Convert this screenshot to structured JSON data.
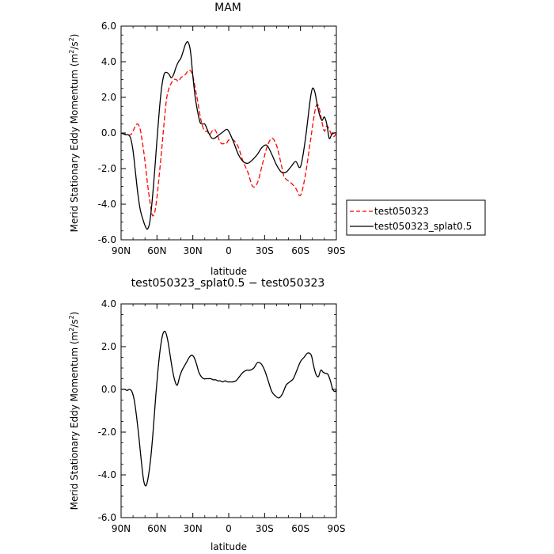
{
  "chart_data": [
    {
      "type": "line",
      "title": "MAM",
      "xlabel": "latitude",
      "ylabel": "Merid Stationary Eddy Momentum (m²/s²)",
      "ylabel_main": "Merid Stationary Eddy Momentum (m",
      "ylabel_unit_tail": "/s",
      "ylabel_close": ")",
      "ylabel_sup": "2",
      "xlim": [
        90,
        -90
      ],
      "ylim": [
        -6,
        6
      ],
      "x_ticks": [
        90,
        60,
        30,
        0,
        -30,
        -60,
        -90
      ],
      "x_tick_labels": [
        "90N",
        "60N",
        "30N",
        "0",
        "30S",
        "60S",
        "90S"
      ],
      "y_ticks": [
        6,
        4,
        2,
        0,
        -2,
        -4,
        -6
      ],
      "y_tick_labels": [
        "6.0",
        "4.0",
        "2.0",
        "0.0",
        "-2.0",
        "-4.0",
        "-6.0"
      ],
      "legend_position": "right",
      "series": [
        {
          "name": "test050323",
          "color": "#ff0000",
          "dash": "dashed",
          "x": [
            90,
            85,
            82,
            80,
            78,
            76,
            74,
            72,
            70,
            68,
            66,
            64,
            62,
            60,
            58,
            56,
            54,
            52,
            50,
            48,
            46,
            44,
            42,
            40,
            38,
            36,
            34,
            32,
            30,
            28,
            26,
            24,
            22,
            20,
            18,
            16,
            14,
            12,
            10,
            8,
            6,
            4,
            2,
            0,
            -4,
            -8,
            -12,
            -16,
            -20,
            -24,
            -28,
            -32,
            -36,
            -40,
            -44,
            -46,
            -48,
            -52,
            -56,
            -60,
            -64,
            -68,
            -72,
            -74,
            -76,
            -78,
            -80,
            -82,
            -84,
            -86,
            -88,
            -90
          ],
          "y": [
            0,
            -0.1,
            -0.1,
            0.1,
            0.4,
            0.5,
            0.2,
            -0.6,
            -1.6,
            -2.8,
            -3.8,
            -4.6,
            -4.5,
            -3.6,
            -2.3,
            -0.9,
            0.6,
            1.9,
            2.5,
            2.8,
            3.0,
            3.0,
            2.9,
            3.1,
            3.2,
            3.3,
            3.5,
            3.5,
            3.2,
            2.5,
            1.8,
            1.0,
            0.4,
            0.1,
            0.1,
            -0.1,
            0.1,
            0.2,
            0.0,
            -0.4,
            -0.6,
            -0.6,
            -0.6,
            -0.4,
            -0.4,
            -0.8,
            -1.6,
            -2.2,
            -3.0,
            -2.8,
            -1.8,
            -0.8,
            -0.3,
            -0.7,
            -1.8,
            -2.4,
            -2.6,
            -2.8,
            -3.1,
            -3.5,
            -2.4,
            -0.6,
            1.2,
            1.6,
            1.3,
            0.6,
            0.1,
            0.4,
            0.2,
            -0.1,
            -0.2,
            0.0
          ]
        },
        {
          "name": "test050323_splat0.5",
          "color": "#000000",
          "dash": "solid",
          "x": [
            90,
            86,
            84,
            82,
            80,
            78,
            76,
            74,
            72,
            70,
            68,
            66,
            64,
            62,
            60,
            58,
            56,
            54,
            52,
            50,
            48,
            46,
            44,
            42,
            40,
            38,
            36,
            34,
            32,
            30,
            28,
            26,
            24,
            22,
            20,
            18,
            16,
            14,
            12,
            10,
            8,
            6,
            4,
            2,
            0,
            -4,
            -8,
            -12,
            -16,
            -20,
            -24,
            -28,
            -32,
            -36,
            -40,
            -44,
            -48,
            -52,
            -56,
            -60,
            -64,
            -68,
            -70,
            -72,
            -74,
            -76,
            -78,
            -80,
            -82,
            -84,
            -86,
            -88,
            -90
          ],
          "y": [
            0,
            -0.1,
            -0.1,
            -0.3,
            -1.0,
            -2.2,
            -3.4,
            -4.3,
            -4.8,
            -5.2,
            -5.4,
            -5.0,
            -3.8,
            -2.2,
            -0.4,
            1.3,
            2.6,
            3.3,
            3.4,
            3.3,
            3.1,
            3.3,
            3.7,
            4.0,
            4.2,
            4.6,
            5.0,
            5.1,
            4.6,
            3.2,
            2.0,
            1.2,
            0.6,
            0.5,
            0.5,
            0.2,
            -0.1,
            -0.3,
            -0.3,
            -0.2,
            -0.1,
            0.0,
            0.1,
            0.2,
            0.1,
            -0.5,
            -1.2,
            -1.6,
            -1.7,
            -1.5,
            -1.2,
            -0.8,
            -0.7,
            -1.2,
            -1.8,
            -2.2,
            -2.2,
            -1.9,
            -1.6,
            -1.9,
            -0.4,
            1.8,
            2.5,
            2.3,
            1.6,
            1.0,
            0.7,
            0.9,
            0.5,
            -0.3,
            -0.1,
            0.0,
            0.0
          ]
        }
      ]
    },
    {
      "type": "line",
      "title": "test050323_splat0.5 − test050323",
      "xlabel": "latitude",
      "ylabel": "Merid Stationary Eddy Momentum (m²/s²)",
      "ylabel_main": "Merid Stationary Eddy Momentum (m",
      "ylabel_unit_tail": "/s",
      "ylabel_close": ")",
      "ylabel_sup": "2",
      "xlim": [
        90,
        -90
      ],
      "ylim": [
        -6,
        4
      ],
      "x_ticks": [
        90,
        60,
        30,
        0,
        -30,
        -60,
        -90
      ],
      "x_tick_labels": [
        "90N",
        "60N",
        "30N",
        "0",
        "30S",
        "60S",
        "90S"
      ],
      "y_ticks": [
        4,
        2,
        0,
        -2,
        -4,
        -6
      ],
      "y_tick_labels": [
        "4.0",
        "2.0",
        "0.0",
        "-2.0",
        "-4.0",
        "-6.0"
      ],
      "series": [
        {
          "color": "#000000",
          "dash": "solid",
          "x": [
            90,
            87,
            85,
            83,
            81,
            79,
            77,
            75,
            73,
            71,
            69,
            67,
            65,
            63,
            61,
            59,
            57,
            55,
            53,
            51,
            49,
            47,
            45,
            43,
            41,
            39,
            37,
            35,
            33,
            31,
            29,
            27,
            25,
            23,
            21,
            19,
            17,
            15,
            13,
            11,
            9,
            7,
            5,
            3,
            1,
            -1,
            -3,
            -6,
            -9,
            -12,
            -15,
            -18,
            -21,
            -24,
            -27,
            -30,
            -33,
            -36,
            -39,
            -42,
            -45,
            -48,
            -51,
            -54,
            -57,
            -60,
            -63,
            -66,
            -69,
            -71,
            -73,
            -75,
            -77,
            -79,
            -81,
            -83,
            -85,
            -87,
            -89,
            -90
          ],
          "y": [
            0,
            0,
            -0.05,
            0.0,
            -0.1,
            -0.5,
            -1.3,
            -2.3,
            -3.4,
            -4.3,
            -4.5,
            -4.0,
            -3.1,
            -1.8,
            -0.3,
            1.0,
            2.0,
            2.6,
            2.7,
            2.3,
            1.6,
            0.9,
            0.4,
            0.2,
            0.6,
            0.9,
            1.1,
            1.3,
            1.5,
            1.6,
            1.5,
            1.2,
            0.8,
            0.6,
            0.5,
            0.5,
            0.5,
            0.5,
            0.45,
            0.45,
            0.4,
            0.4,
            0.35,
            0.4,
            0.35,
            0.35,
            0.35,
            0.4,
            0.6,
            0.8,
            0.9,
            0.9,
            1.0,
            1.25,
            1.2,
            0.9,
            0.4,
            -0.1,
            -0.3,
            -0.4,
            -0.2,
            0.2,
            0.35,
            0.5,
            0.9,
            1.3,
            1.5,
            1.7,
            1.6,
            1.1,
            0.7,
            0.6,
            0.9,
            0.8,
            0.75,
            0.7,
            0.4,
            0.0,
            -0.1,
            0.0
          ]
        }
      ]
    }
  ]
}
